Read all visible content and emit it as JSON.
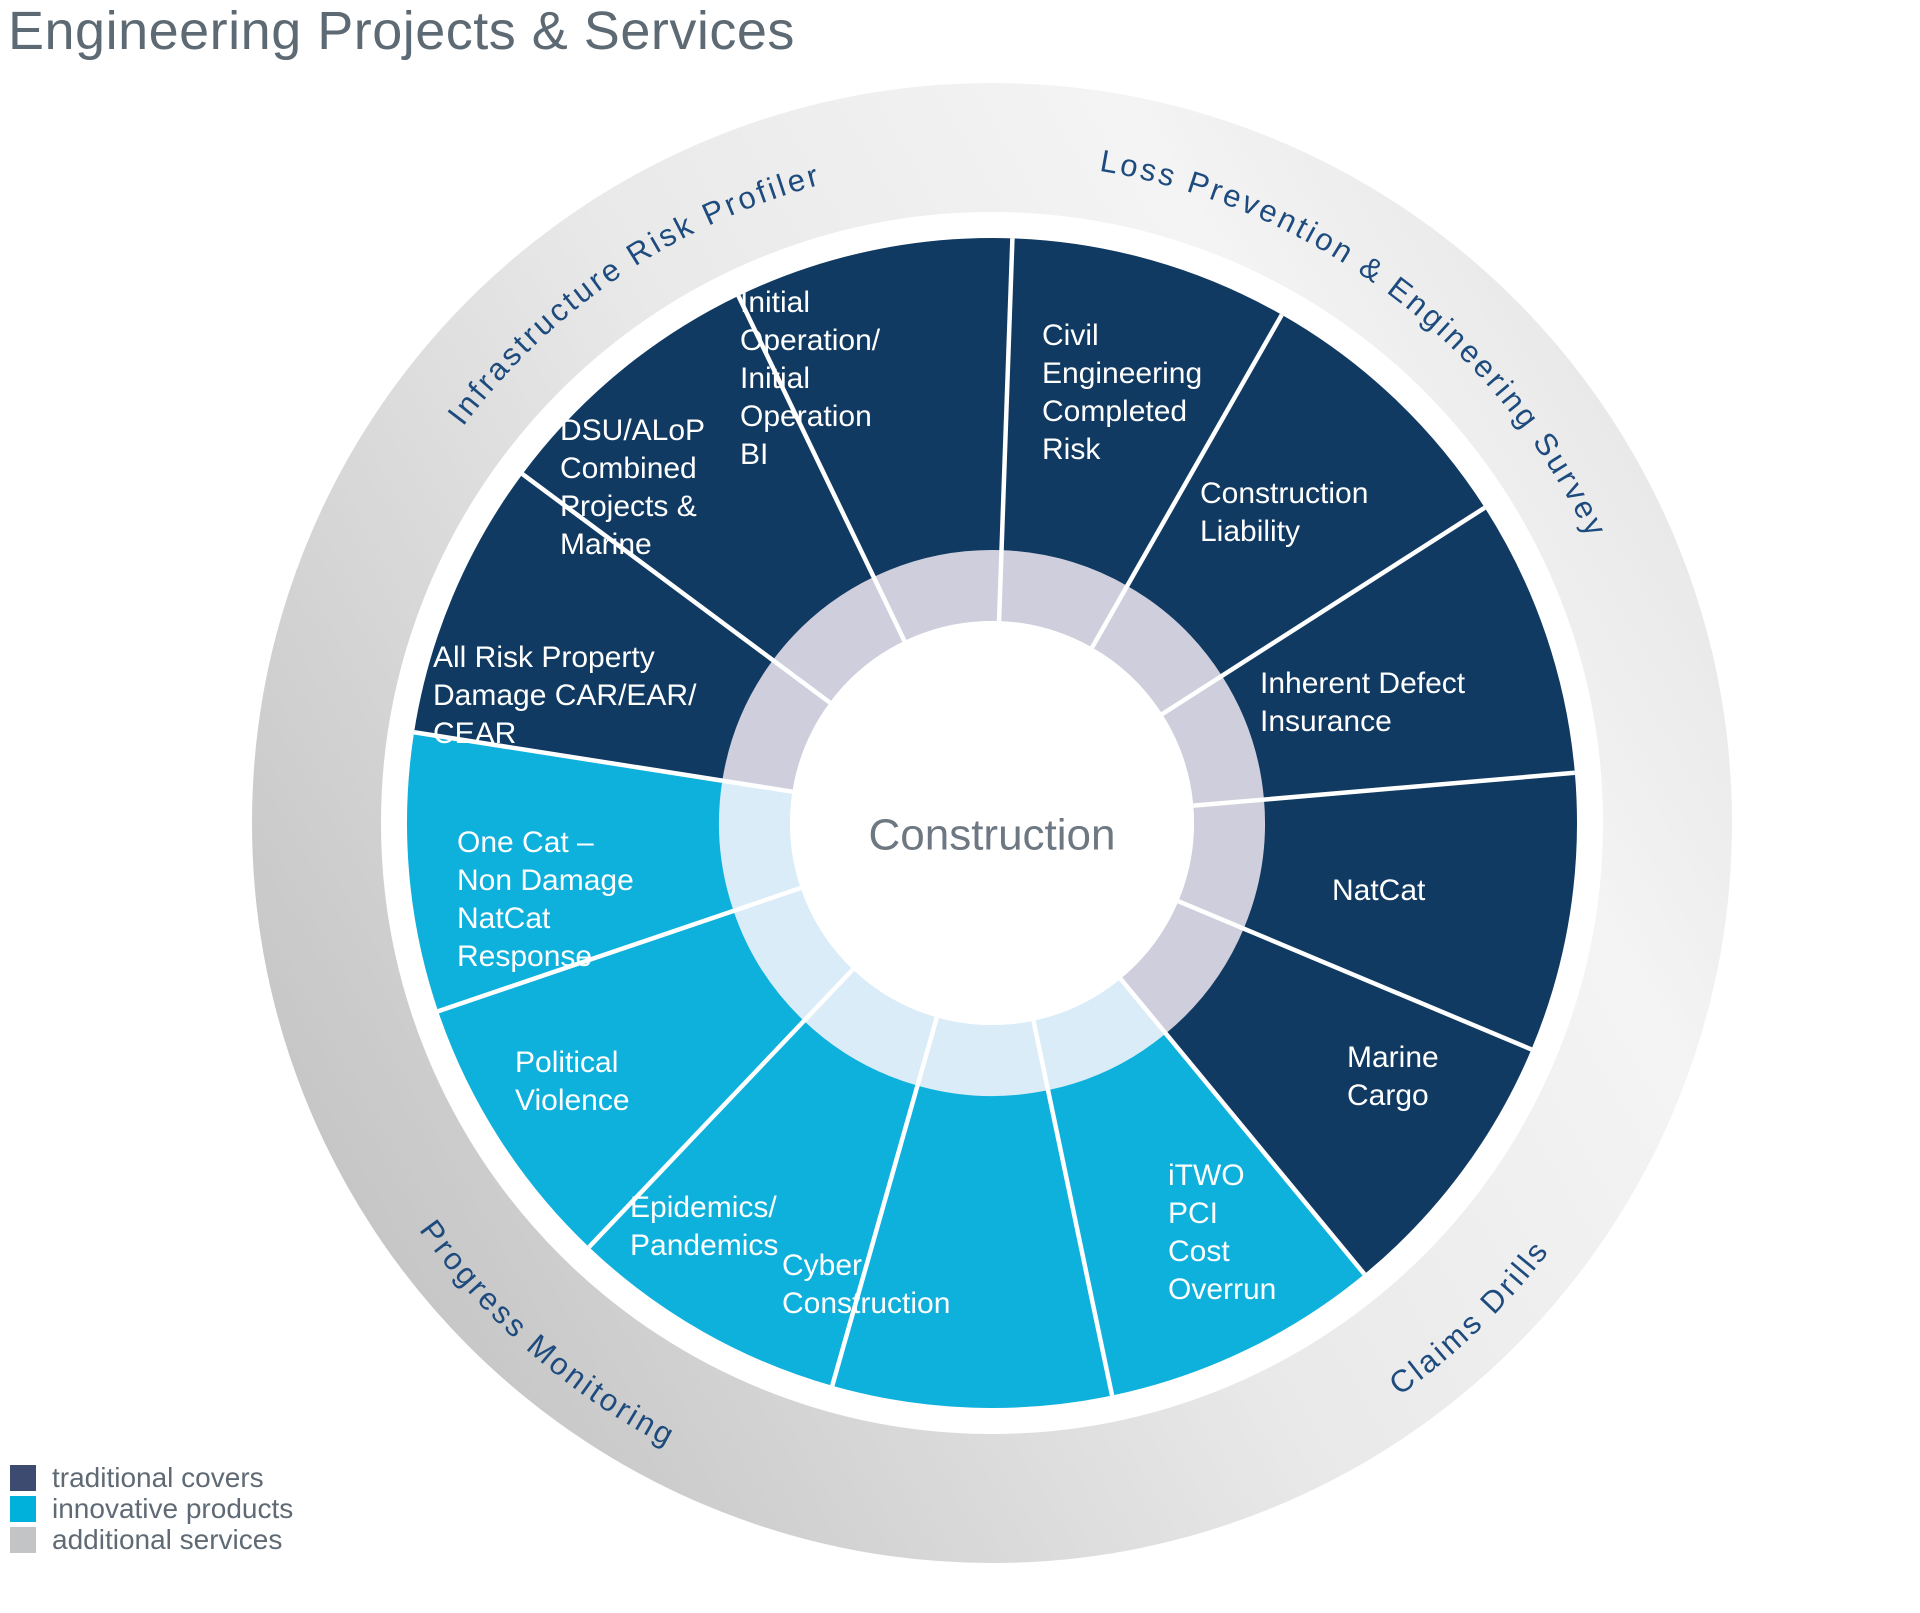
{
  "title": "Engineering Projects & Services",
  "center_label": "Construction",
  "colors": {
    "traditional": "#113a62",
    "innovative": "#0eb0dc",
    "inner_traditional": "#cfcedd",
    "inner_innovative": "#d9ecf8",
    "ring_dark": "#c3c3c3",
    "ring_light": "#f4f4f4",
    "ring_text": "#1d4b7e",
    "divider": "#ffffff"
  },
  "segments": [
    {
      "label": "Civil Engineering Completed Risk",
      "lines": [
        "Civil",
        "Engineering",
        "Completed",
        "Risk"
      ],
      "category": "traditional"
    },
    {
      "label": "Construction Liability",
      "lines": [
        "Construction",
        "Liability"
      ],
      "category": "traditional"
    },
    {
      "label": "Inherent Defect Insurance",
      "lines": [
        "Inherent Defect",
        "Insurance"
      ],
      "category": "traditional"
    },
    {
      "label": "NatCat",
      "lines": [
        "NatCat"
      ],
      "category": "traditional"
    },
    {
      "label": "Marine Cargo",
      "lines": [
        "Marine",
        "Cargo"
      ],
      "category": "traditional"
    },
    {
      "label": "iTWO PCI Cost Overrun",
      "lines": [
        "iTWO",
        "PCI",
        "Cost",
        "Overrun"
      ],
      "category": "innovative"
    },
    {
      "label": "Cyber Construction",
      "lines": [
        "Cyber",
        "Construction"
      ],
      "category": "innovative"
    },
    {
      "label": "Epidemics/Pandemics",
      "lines": [
        "Epidemics/",
        "Pandemics"
      ],
      "category": "innovative"
    },
    {
      "label": "Political Violence",
      "lines": [
        "Political",
        "Violence"
      ],
      "category": "innovative"
    },
    {
      "label": "One Cat – Non Damage NatCat Response",
      "lines": [
        "One Cat –",
        "Non Damage",
        "NatCat",
        "Response"
      ],
      "category": "innovative"
    },
    {
      "label": "All Risk Property Damage CAR/EAR/CEAR",
      "lines": [
        "All Risk Property",
        "Damage CAR/EAR/",
        "CEAR"
      ],
      "category": "traditional"
    },
    {
      "label": "DSU/ALoP Combined Projects & Marine",
      "lines": [
        "DSU/ALoP",
        "Combined",
        "Projects &",
        "Marine"
      ],
      "category": "traditional"
    },
    {
      "label": "Initial Operation/Initial Operation BI",
      "lines": [
        "Initial",
        "Operation/",
        "Initial",
        "Operation",
        "BI"
      ],
      "category": "traditional"
    }
  ],
  "services": [
    {
      "label": "Infrastructure Risk Profiler"
    },
    {
      "label": "Loss Prevention & Engineering Survey"
    },
    {
      "label": "Claims Drills"
    },
    {
      "label": "Progress Monitoring"
    }
  ],
  "legend": [
    {
      "label": "traditional covers",
      "color": "#3e4b70"
    },
    {
      "label": "innovative products",
      "color": "#00b1dc"
    },
    {
      "label": "additional services",
      "color": "#c3c4c6"
    }
  ]
}
